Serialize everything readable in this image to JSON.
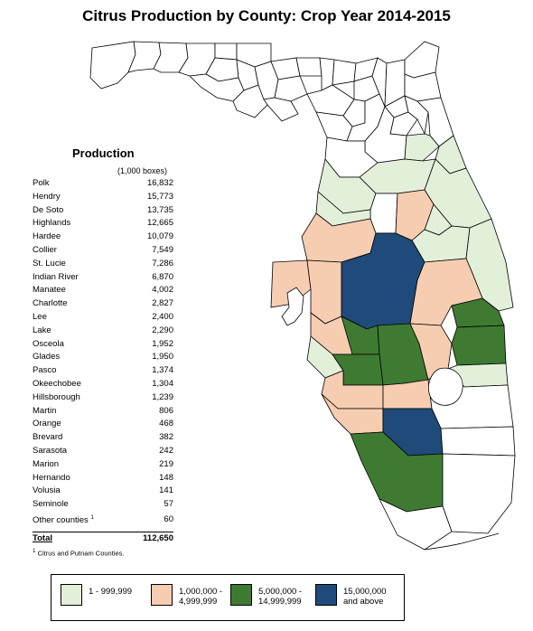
{
  "title": "Citrus Production by County: Crop Year 2014-2015",
  "production": {
    "heading": "Production",
    "units": "(1,000 boxes)",
    "rows": [
      {
        "county": "Polk",
        "value": "16,832"
      },
      {
        "county": "Hendry",
        "value": "15,773"
      },
      {
        "county": "De Soto",
        "value": "13,735"
      },
      {
        "county": "Highlands",
        "value": "12,665"
      },
      {
        "county": "Hardee",
        "value": "10,079"
      },
      {
        "county": "Collier",
        "value": "7,549"
      },
      {
        "county": "St. Lucie",
        "value": "7,286"
      },
      {
        "county": "Indian River",
        "value": "6,870"
      },
      {
        "county": "Manatee",
        "value": "4,002"
      },
      {
        "county": "Charlotte",
        "value": "2,827"
      },
      {
        "county": "Lee",
        "value": "2,400"
      },
      {
        "county": "Lake",
        "value": "2,290"
      },
      {
        "county": "Osceola",
        "value": "1,952"
      },
      {
        "county": "Glades",
        "value": "1,950"
      },
      {
        "county": "Pasco",
        "value": "1,374"
      },
      {
        "county": "Okeechobee",
        "value": "1,304"
      },
      {
        "county": "Hillsborough",
        "value": "1,239"
      },
      {
        "county": "Martin",
        "value": "806"
      },
      {
        "county": "Orange",
        "value": "468"
      },
      {
        "county": "Brevard",
        "value": "382"
      },
      {
        "county": "Sarasota",
        "value": "242"
      },
      {
        "county": "Marion",
        "value": "219"
      },
      {
        "county": "Hernando",
        "value": "148"
      },
      {
        "county": "Volusia",
        "value": "141"
      },
      {
        "county": "Seminole",
        "value": "57"
      },
      {
        "county": "Other counties",
        "value": "60",
        "footnote_mark": "1"
      }
    ],
    "total_label": "Total",
    "total_value": "112,650"
  },
  "footnote": {
    "mark": "1",
    "text": "Citrus and Putnam Counties."
  },
  "legend": [
    {
      "label": "1 - 999,999",
      "color": "#e2f0da"
    },
    {
      "label": "1,000,000 -\n4,999,999",
      "color": "#f7cdb2"
    },
    {
      "label": "5,000,000 -\n14,999,999",
      "color": "#3f7a33"
    },
    {
      "label": "15,000,000\nand above",
      "color": "#1f4a7a"
    }
  ],
  "colors": {
    "none": "#ffffff",
    "light_green": "#e2f0da",
    "peach": "#f7cdb2",
    "green": "#3f7a33",
    "blue": "#1f4a7a",
    "outline": "#000000"
  }
}
